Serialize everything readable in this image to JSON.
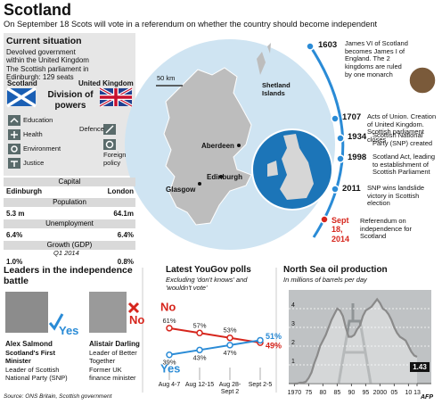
{
  "header": {
    "title": "Scotland",
    "subtitle": "On September 18 Scots will vote in a referendum on whether the country should become independent"
  },
  "current_situation": {
    "title": "Current situation",
    "description": "Devolved government within the United Kingdom",
    "parliament": "The Scottish parliament in Edinburgh: 129 seats",
    "flags": [
      "Scotland",
      "United Kingdom"
    ],
    "division_title": "Division of powers",
    "scotland_powers": [
      "Education",
      "Health",
      "Environment",
      "Justice"
    ],
    "uk_powers": [
      "Defence",
      "Foreign policy"
    ]
  },
  "comparison": {
    "rows": [
      {
        "label": "Capital",
        "scotland": "Edinburgh",
        "uk": "London"
      },
      {
        "label": "Population",
        "scotland": "5.3 m",
        "uk": "64.1m"
      },
      {
        "label": "Unemployment",
        "scotland": "6.4%",
        "uk": "6.4%"
      },
      {
        "label": "Growth (GDP)",
        "note": "Q1 2014",
        "scotland": "1.0%",
        "uk": "0.8%"
      }
    ]
  },
  "map": {
    "scale": "50 km",
    "labels": [
      "Shetland Islands",
      "Aberdeen",
      "Edinburgh",
      "Glasgow"
    ]
  },
  "timeline": [
    {
      "date": "1603",
      "text": "James VI of Scotland becomes James I of England. The 2 kingdoms are ruled by one monarch"
    },
    {
      "date": "1707",
      "text": "Acts of Union. Creation of United Kingdom. Scottish parliament closes"
    },
    {
      "date": "1934",
      "text": "Scottish National Party (SNP) created"
    },
    {
      "date": "1998",
      "text": "Scotland Act, leading to establishment of Scottish Parliament"
    },
    {
      "date": "2011",
      "text": "SNP wins landslide victory in Scottish election"
    },
    {
      "date": "Sept 18, 2014",
      "text": "Referendum on independence for Scotland"
    }
  ],
  "leaders": {
    "title": "Leaders in the independence battle",
    "people": [
      {
        "name": "Alex Salmond",
        "vote": "Yes",
        "role": "Scotland's First Minister",
        "detail": "Leader of Scottish National Party (SNP)"
      },
      {
        "name": "Alistair Darling",
        "vote": "No",
        "role": "Leader of Better Together",
        "detail": "Former UK finance minister"
      }
    ]
  },
  "chart_data": [
    {
      "type": "line",
      "title": "Latest YouGov polls",
      "subtitle": "Excluding 'don't knows' and 'wouldn't vote'",
      "categories": [
        "Aug 4-7",
        "Aug 12-15",
        "Aug 28-Sept 2",
        "Sept 2-5"
      ],
      "ylim": [
        30,
        80
      ],
      "series": [
        {
          "name": "No",
          "color": "#d6251c",
          "values": [
            61,
            57,
            53,
            49
          ],
          "value_labels": [
            "61%",
            "57%",
            "53%",
            "49%"
          ]
        },
        {
          "name": "Yes",
          "color": "#2a8bd6",
          "values": [
            39,
            43,
            47,
            51
          ],
          "value_labels": [
            "39%",
            "43%",
            "47%",
            "51%"
          ]
        }
      ]
    },
    {
      "type": "area",
      "title": "North Sea oil production",
      "subtitle": "In millions of barrels per day",
      "x": [
        1970,
        1971,
        1972,
        1973,
        1974,
        1975,
        1976,
        1977,
        1978,
        1979,
        1980,
        1981,
        1982,
        1983,
        1984,
        1985,
        1986,
        1987,
        1988,
        1989,
        1990,
        1991,
        1992,
        1993,
        1994,
        1995,
        1996,
        1997,
        1998,
        1999,
        2000,
        2001,
        2002,
        2003,
        2004,
        2005,
        2006,
        2007,
        2008,
        2009,
        2010,
        2011,
        2012,
        2013
      ],
      "values": [
        0,
        0,
        0.05,
        0.05,
        0.1,
        0.3,
        0.6,
        1.1,
        1.5,
        2.0,
        2.3,
        2.6,
        3.0,
        3.4,
        3.7,
        4.0,
        3.9,
        3.6,
        3.0,
        2.5,
        2.5,
        2.6,
        2.9,
        3.1,
        3.6,
        3.9,
        4.0,
        4.1,
        4.3,
        4.5,
        4.3,
        4.0,
        3.9,
        3.7,
        3.4,
        3.0,
        2.7,
        2.5,
        2.4,
        2.3,
        2.0,
        1.7,
        1.5,
        1.43
      ],
      "color": "#8a8a8a",
      "xlim": [
        1968,
        2018
      ],
      "ylim": [
        0,
        5
      ],
      "xticks": [
        1970,
        {
          "value": 1975,
          "label": "75"
        },
        {
          "value": 1980,
          "label": "80"
        },
        {
          "value": 1985,
          "label": "85"
        },
        {
          "value": 1990,
          "label": "90"
        },
        {
          "value": 1995,
          "label": "95"
        },
        2000,
        {
          "value": 2005,
          "label": "05"
        },
        {
          "value": 2010,
          "label": "10"
        },
        {
          "value": 2013,
          "label": "13"
        }
      ],
      "yticks": [
        1,
        2,
        3,
        4
      ],
      "grid": true
    }
  ],
  "source": "Source: ONS Britain, Scottish government",
  "credit": "AFP"
}
